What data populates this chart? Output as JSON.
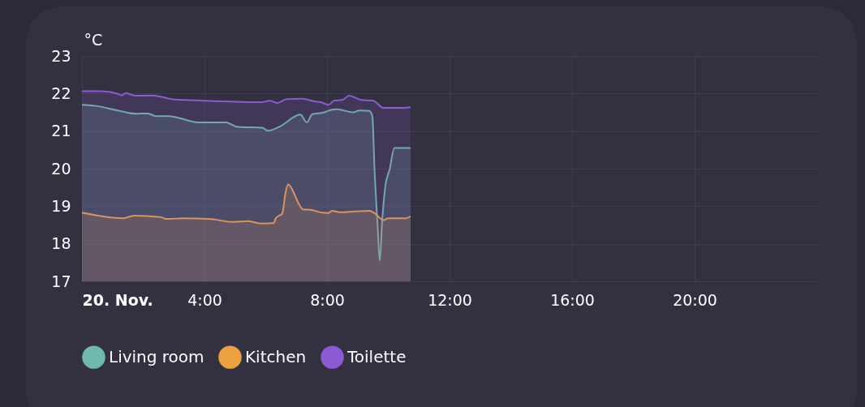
{
  "chart_data": {
    "type": "area",
    "ylabel": "°C",
    "xlim": [
      0,
      24
    ],
    "xticks": [
      {
        "value": 0,
        "label": "20. Nov."
      },
      {
        "value": 4,
        "label": "4:00"
      },
      {
        "value": 8,
        "label": "8:00"
      },
      {
        "value": 12,
        "label": "12:00"
      },
      {
        "value": 16,
        "label": "16:00"
      },
      {
        "value": 20,
        "label": "20:00"
      }
    ],
    "ylim": [
      17,
      23
    ],
    "yticks": [
      17,
      18,
      19,
      20,
      21,
      22,
      23
    ],
    "grid": true,
    "legend": "bottom",
    "series": [
      {
        "name": "Living room",
        "color": "#6fb8b0",
        "x": [
          0,
          0.45,
          1.11,
          1.77,
          2.15,
          2.41,
          2.83,
          3.81,
          4.69,
          5.09,
          5.88,
          6.07,
          6.46,
          7.13,
          7.34,
          7.52,
          7.92,
          8.0,
          8.32,
          8.85,
          9.06,
          9.38,
          9.48,
          9.55,
          9.65,
          9.72,
          9.8,
          9.9,
          10.05,
          10.2,
          10.73
        ],
        "values": [
          21.7,
          21.67,
          21.56,
          21.46,
          21.47,
          21.4,
          21.4,
          21.23,
          21.23,
          21.11,
          21.09,
          21.01,
          21.12,
          21.44,
          21.23,
          21.45,
          21.5,
          21.53,
          21.58,
          21.5,
          21.55,
          21.54,
          21.4,
          20.0,
          18.5,
          17.55,
          18.6,
          19.5,
          20.0,
          20.55,
          20.55
        ]
      },
      {
        "name": "Kitchen",
        "color": "#eda13f",
        "x": [
          0,
          1.35,
          1.7,
          2.57,
          2.75,
          3.36,
          4.16,
          4.95,
          5.4,
          5.85,
          6.25,
          6.33,
          6.54,
          6.65,
          6.73,
          6.86,
          7.05,
          7.23,
          7.39,
          7.84,
          8.05,
          8.16,
          8.4,
          8.9,
          9.38,
          9.56,
          9.85,
          9.99,
          10.57,
          10.73
        ],
        "values": [
          18.83,
          18.68,
          18.75,
          18.71,
          18.66,
          18.68,
          18.66,
          18.58,
          18.6,
          18.54,
          18.55,
          18.68,
          18.81,
          19.38,
          19.58,
          19.45,
          19.11,
          18.91,
          18.91,
          18.83,
          18.82,
          18.88,
          18.84,
          18.86,
          18.88,
          18.81,
          18.63,
          18.68,
          18.68,
          18.73
        ]
      },
      {
        "name": "Toilette",
        "color": "#8c5ad2",
        "x": [
          0,
          0.64,
          1.17,
          1.3,
          1.43,
          1.75,
          2.3,
          3.02,
          4.0,
          5.88,
          6.12,
          6.38,
          6.68,
          7.18,
          7.6,
          7.79,
          8.05,
          8.23,
          8.5,
          8.72,
          9.11,
          9.51,
          9.83,
          10.52,
          10.73
        ],
        "values": [
          22.06,
          22.06,
          21.99,
          21.95,
          22.01,
          21.94,
          21.95,
          21.84,
          21.81,
          21.77,
          21.81,
          21.75,
          21.85,
          21.86,
          21.79,
          21.77,
          21.7,
          21.81,
          21.83,
          21.94,
          21.83,
          21.81,
          21.62,
          21.62,
          21.64
        ]
      }
    ]
  }
}
